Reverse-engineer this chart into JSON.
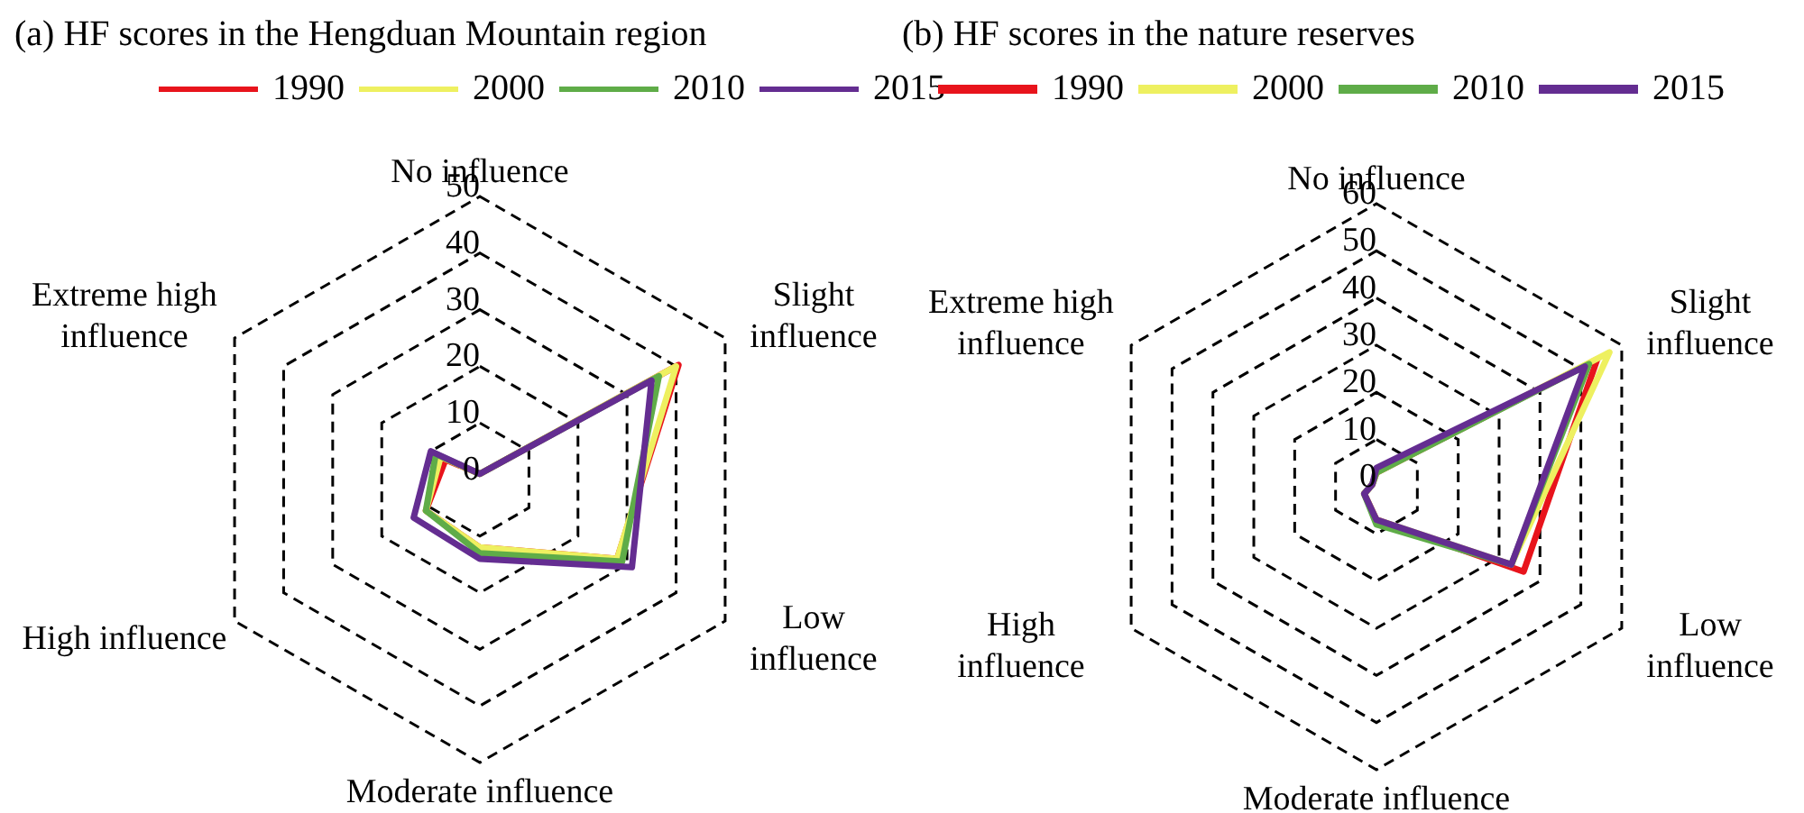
{
  "chart_data": [
    {
      "type": "radar",
      "title": "(a) HF scores in the Hengduan Mountain region",
      "categories": [
        "No influence",
        "Slight influence",
        "Low influence",
        "Moderate influence",
        "High influence",
        "Extreme high influence"
      ],
      "ylim": [
        0,
        50
      ],
      "yticks": [
        0,
        10,
        20,
        30,
        40,
        50
      ],
      "legend": "top",
      "series": [
        {
          "name": "1990",
          "color": "#e8141c",
          "values": [
            1,
            40.5,
            28,
            12,
            11,
            7
          ]
        },
        {
          "name": "2000",
          "color": "#eef060",
          "values": [
            1,
            40,
            28,
            12,
            11,
            8
          ]
        },
        {
          "name": "2010",
          "color": "#5fac48",
          "values": [
            1,
            36.5,
            29,
            13,
            11,
            9
          ]
        },
        {
          "name": "2015",
          "color": "#642d91",
          "values": [
            1,
            35,
            31,
            14,
            13.5,
            10
          ]
        }
      ]
    },
    {
      "type": "radar",
      "title": "(b) HF scores in the nature reserves",
      "categories": [
        "No influence",
        "Slight influence",
        "Low influence",
        "Moderate influence",
        "High influence",
        "Extreme high influence"
      ],
      "ylim": [
        0,
        60
      ],
      "yticks": [
        0,
        10,
        20,
        30,
        40,
        50,
        60
      ],
      "legend": "top",
      "series": [
        {
          "name": "1990",
          "color": "#e8141c",
          "values": [
            3,
            54,
            36,
            7,
            3,
            1
          ]
        },
        {
          "name": "2000",
          "color": "#eef060",
          "values": [
            3,
            57,
            33,
            7,
            3,
            1
          ]
        },
        {
          "name": "2010",
          "color": "#5fac48",
          "values": [
            3,
            52,
            33,
            8,
            3,
            1
          ]
        },
        {
          "name": "2015",
          "color": "#642d91",
          "values": [
            4,
            51,
            33,
            7,
            3,
            1
          ]
        }
      ]
    }
  ]
}
